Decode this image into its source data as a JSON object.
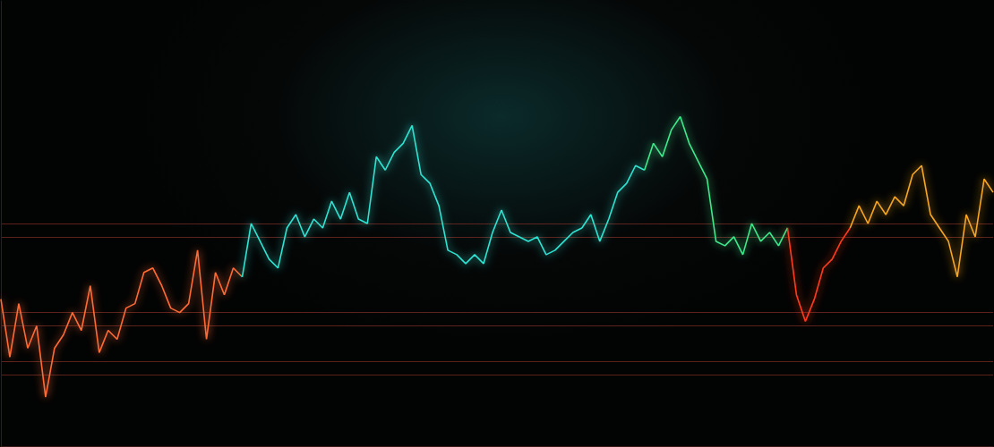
{
  "chart_data": {
    "type": "line",
    "x": [
      0,
      1,
      2,
      3,
      4,
      5,
      6,
      7,
      8,
      9,
      10,
      11,
      12,
      13,
      14,
      15,
      16,
      17,
      18,
      19,
      20,
      21,
      22,
      23,
      24,
      25,
      26,
      27,
      28,
      29,
      30,
      31,
      32,
      33,
      34,
      35,
      36,
      37,
      38,
      39,
      40,
      41,
      42,
      43,
      44,
      45,
      46,
      47,
      48,
      49,
      50,
      51,
      52,
      53,
      54,
      55,
      56,
      57,
      58,
      59,
      60,
      61,
      62,
      63,
      64,
      65,
      66,
      67,
      68,
      69,
      70,
      71,
      72,
      73,
      74,
      75,
      76,
      77,
      78,
      79,
      80,
      81,
      82,
      83,
      84,
      85,
      86,
      87,
      88,
      89,
      90,
      91,
      92,
      93,
      94,
      95,
      96,
      97,
      98,
      99,
      100,
      101,
      102,
      103,
      104,
      105,
      106,
      107,
      108,
      109,
      110,
      111
    ],
    "series": [
      {
        "color": "#ff6b35",
        "values": [
          33,
          20,
          32,
          22,
          27,
          11,
          22,
          25,
          30,
          26,
          36,
          21,
          26,
          24,
          31,
          32,
          39,
          40,
          36,
          31,
          30,
          32,
          44,
          24,
          39,
          34,
          40,
          38,
          null,
          null,
          null,
          null,
          null,
          null,
          null,
          null,
          null,
          null,
          null,
          null,
          null,
          null,
          null,
          null,
          null,
          null,
          null,
          null,
          null,
          null,
          null,
          null,
          null,
          null,
          null,
          null,
          null,
          null,
          null,
          null,
          null,
          null,
          null,
          null,
          null,
          null,
          null,
          null,
          null,
          null,
          null,
          null,
          null,
          null,
          null,
          null,
          null,
          null,
          null,
          null,
          null,
          null,
          null,
          null,
          null,
          null,
          null,
          null,
          null,
          null,
          null,
          null,
          null,
          null,
          null,
          null,
          null,
          null,
          null,
          null,
          null,
          null,
          null,
          null,
          null,
          null,
          null,
          null,
          null,
          null,
          null,
          null
        ]
      },
      {
        "color": "#2fe3d2",
        "values": [
          null,
          null,
          null,
          null,
          null,
          null,
          null,
          null,
          null,
          null,
          null,
          null,
          null,
          null,
          null,
          null,
          null,
          null,
          null,
          null,
          null,
          null,
          null,
          null,
          null,
          null,
          null,
          38,
          50,
          46,
          42,
          40,
          49,
          52,
          47,
          51,
          49,
          55,
          51,
          57,
          51,
          50,
          65,
          62,
          66,
          68,
          72,
          61,
          59,
          54,
          44,
          43,
          41,
          43,
          41,
          48,
          53,
          48,
          47,
          46,
          47,
          43,
          44,
          46,
          48,
          49,
          52,
          46,
          51,
          57,
          59,
          63,
          62,
          null,
          null,
          null,
          null,
          null,
          null,
          null,
          null,
          null,
          null,
          null,
          null,
          null,
          null,
          null,
          null,
          null,
          null,
          null,
          null,
          null,
          null,
          null,
          null,
          null,
          null,
          null,
          null,
          null,
          null,
          null,
          null,
          null,
          null,
          null,
          null,
          null,
          null,
          null
        ]
      },
      {
        "color": "#3fe88c",
        "values": [
          null,
          null,
          null,
          null,
          null,
          null,
          null,
          null,
          null,
          null,
          null,
          null,
          null,
          null,
          null,
          null,
          null,
          null,
          null,
          null,
          null,
          null,
          null,
          null,
          null,
          null,
          null,
          null,
          null,
          null,
          null,
          null,
          null,
          null,
          null,
          null,
          null,
          null,
          null,
          null,
          null,
          null,
          null,
          null,
          null,
          null,
          null,
          null,
          null,
          null,
          null,
          null,
          null,
          null,
          null,
          null,
          null,
          null,
          null,
          null,
          null,
          null,
          null,
          null,
          null,
          null,
          null,
          null,
          null,
          null,
          null,
          null,
          62,
          68,
          65,
          71,
          74,
          68,
          64,
          60,
          46,
          45,
          47,
          43,
          50,
          46,
          48,
          45,
          49,
          null,
          null,
          null,
          null,
          null,
          null,
          null,
          null,
          null,
          null,
          null,
          null,
          null,
          null,
          null,
          null,
          null,
          null,
          null,
          null,
          null,
          null,
          null
        ]
      },
      {
        "color": "#ff3b1f",
        "values": [
          null,
          null,
          null,
          null,
          null,
          null,
          null,
          null,
          null,
          null,
          null,
          null,
          null,
          null,
          null,
          null,
          null,
          null,
          null,
          null,
          null,
          null,
          null,
          null,
          null,
          null,
          null,
          null,
          null,
          null,
          null,
          null,
          null,
          null,
          null,
          null,
          null,
          null,
          null,
          null,
          null,
          null,
          null,
          null,
          null,
          null,
          null,
          null,
          null,
          null,
          null,
          null,
          null,
          null,
          null,
          null,
          null,
          null,
          null,
          null,
          null,
          null,
          null,
          null,
          null,
          null,
          null,
          null,
          null,
          null,
          null,
          null,
          null,
          null,
          null,
          null,
          null,
          null,
          null,
          null,
          null,
          null,
          null,
          null,
          null,
          null,
          null,
          null,
          49,
          34,
          28,
          33,
          40,
          42,
          46,
          49,
          null,
          null,
          null,
          null,
          null,
          null,
          null,
          null,
          null,
          null,
          null,
          null,
          null,
          null,
          null,
          null
        ]
      },
      {
        "color": "#f5a623",
        "values": [
          null,
          null,
          null,
          null,
          null,
          null,
          null,
          null,
          null,
          null,
          null,
          null,
          null,
          null,
          null,
          null,
          null,
          null,
          null,
          null,
          null,
          null,
          null,
          null,
          null,
          null,
          null,
          null,
          null,
          null,
          null,
          null,
          null,
          null,
          null,
          null,
          null,
          null,
          null,
          null,
          null,
          null,
          null,
          null,
          null,
          null,
          null,
          null,
          null,
          null,
          null,
          null,
          null,
          null,
          null,
          null,
          null,
          null,
          null,
          null,
          null,
          null,
          null,
          null,
          null,
          null,
          null,
          null,
          null,
          null,
          null,
          null,
          null,
          null,
          null,
          null,
          null,
          null,
          null,
          null,
          null,
          null,
          null,
          null,
          null,
          null,
          null,
          null,
          null,
          null,
          null,
          null,
          null,
          null,
          null,
          49,
          54,
          50,
          55,
          52,
          56,
          54,
          61,
          63,
          52,
          49,
          46,
          38,
          52,
          47,
          60,
          57
        ]
      }
    ],
    "xlim": [
      0,
      111
    ],
    "ylim": [
      0,
      100
    ],
    "yticks": [
      16,
      19,
      27,
      30,
      47,
      50
    ],
    "grid": true,
    "tick_labels": false
  }
}
